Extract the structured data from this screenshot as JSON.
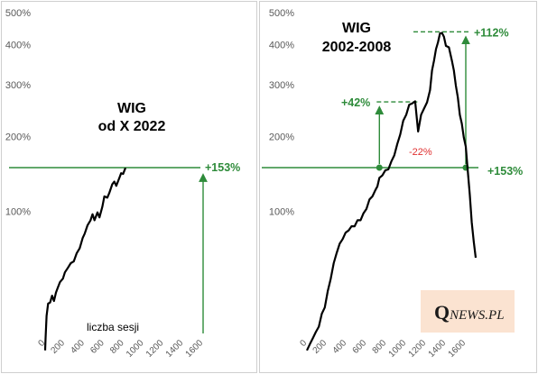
{
  "chart_data": [
    {
      "type": "line",
      "title_lines": [
        "WIG",
        "od X 2022"
      ],
      "scale": "log",
      "y_ticks": [
        "500%",
        "400%",
        "300%",
        "200%",
        "100%"
      ],
      "y_tick_values": [
        500,
        400,
        300,
        200,
        100
      ],
      "x_ticks": [
        "0",
        "200",
        "400",
        "600",
        "800",
        "1000",
        "1200",
        "1400",
        "1600"
      ],
      "x_tick_values": [
        0,
        200,
        400,
        600,
        800,
        1000,
        1200,
        1400,
        1600
      ],
      "x_note": "liczba sesji",
      "reference_level": 153,
      "reference_label": "+153%",
      "series": [
        {
          "x": [
            0,
            5,
            15,
            30,
            50,
            70,
            90,
            110,
            130,
            150,
            180,
            200,
            230,
            260,
            290,
            320,
            350,
            380,
            400,
            430,
            460,
            480,
            500,
            530,
            550,
            580,
            600,
            630,
            650,
            680,
            700,
            720,
            750,
            770,
            790,
            810,
            820
          ],
          "y": [
            0,
            5,
            18,
            24,
            26,
            29,
            27,
            31,
            36,
            38,
            42,
            45,
            50,
            52,
            55,
            60,
            66,
            73,
            79,
            85,
            92,
            96,
            92,
            98,
            95,
            104,
            118,
            114,
            122,
            130,
            136,
            128,
            140,
            144,
            146,
            150,
            153
          ]
        }
      ]
    },
    {
      "type": "line",
      "title_lines": [
        "WIG",
        "2002-2008"
      ],
      "scale": "log",
      "y_ticks": [
        "500%",
        "400%",
        "300%",
        "200%",
        "100%"
      ],
      "y_tick_values": [
        500,
        400,
        300,
        200,
        100
      ],
      "x_ticks": [
        "0",
        "200",
        "400",
        "600",
        "800",
        "1000",
        "1200",
        "1400",
        "1600"
      ],
      "x_tick_values": [
        0,
        200,
        400,
        600,
        800,
        1000,
        1200,
        1400,
        1600
      ],
      "reference_level": 153,
      "reference_label": "+153%",
      "annotations": [
        {
          "label": "+42%",
          "from_x": 730,
          "from_y": 153,
          "to_y": 263
        },
        {
          "label": "+112%",
          "from_x": 1600,
          "from_y": 153,
          "to_y": 438
        },
        {
          "label": "-22%"
        }
      ],
      "series": [
        {
          "x": [
            0,
            30,
            60,
            90,
            120,
            150,
            180,
            210,
            240,
            270,
            300,
            330,
            360,
            390,
            420,
            450,
            480,
            510,
            540,
            570,
            600,
            630,
            660,
            690,
            710,
            730,
            760,
            790,
            820,
            850,
            880,
            910,
            940,
            970,
            1000,
            1030,
            1060,
            1090,
            1120,
            1150,
            1180,
            1210,
            1240,
            1260,
            1280,
            1300,
            1320,
            1340,
            1360,
            1380,
            1400,
            1430,
            1460,
            1480,
            1500,
            1520,
            1540,
            1560,
            1580,
            1600,
            1620,
            1640,
            1660,
            1680,
            1700
          ],
          "y": [
            0,
            2,
            6,
            8,
            12,
            18,
            23,
            32,
            42,
            52,
            62,
            68,
            74,
            78,
            82,
            84,
            86,
            90,
            92,
            97,
            104,
            112,
            118,
            123,
            130,
            138,
            144,
            148,
            152,
            160,
            172,
            186,
            205,
            225,
            240,
            255,
            262,
            262,
            210,
            236,
            252,
            260,
            290,
            330,
            360,
            385,
            410,
            430,
            438,
            420,
            400,
            390,
            360,
            330,
            300,
            270,
            240,
            220,
            200,
            182,
            150,
            118,
            90,
            70,
            58
          ]
        }
      ]
    }
  ],
  "logo": {
    "q": "Q",
    "rest": "NEWS.PL"
  }
}
